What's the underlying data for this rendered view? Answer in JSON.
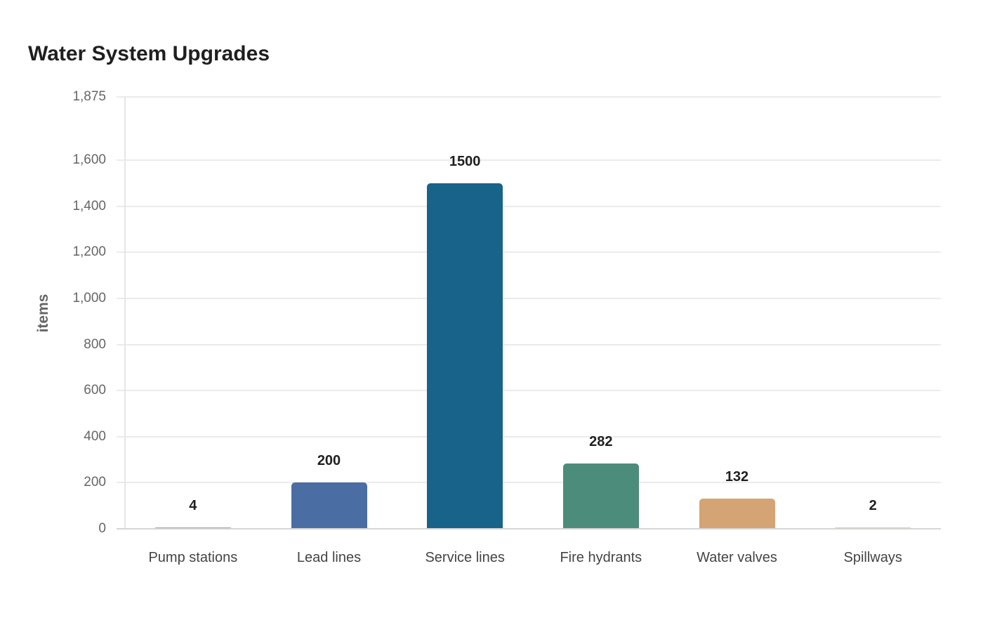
{
  "chart_data": {
    "type": "bar",
    "title": "Water System Upgrades",
    "xlabel": "",
    "ylabel": "items",
    "ylim": [
      0,
      1875
    ],
    "yticks": [
      0,
      200,
      400,
      600,
      800,
      1000,
      1200,
      1400,
      1600,
      1875
    ],
    "ytick_labels": [
      "0",
      "200",
      "400",
      "600",
      "800",
      "1,000",
      "1,200",
      "1,400",
      "1,600",
      "1,875"
    ],
    "grid": true,
    "legend": "none",
    "categories": [
      "Pump stations",
      "Lead lines",
      "Service lines",
      "Fire hydrants",
      "Water valves",
      "Spillways"
    ],
    "values": [
      4,
      200,
      1500,
      282,
      132,
      2
    ],
    "value_labels": [
      "4",
      "200",
      "1500",
      "282",
      "132",
      "2"
    ],
    "colors": [
      "#a6a6a6",
      "#4a6da3",
      "#176389",
      "#4c8c7b",
      "#d4a474",
      "#e5c8b0"
    ]
  }
}
